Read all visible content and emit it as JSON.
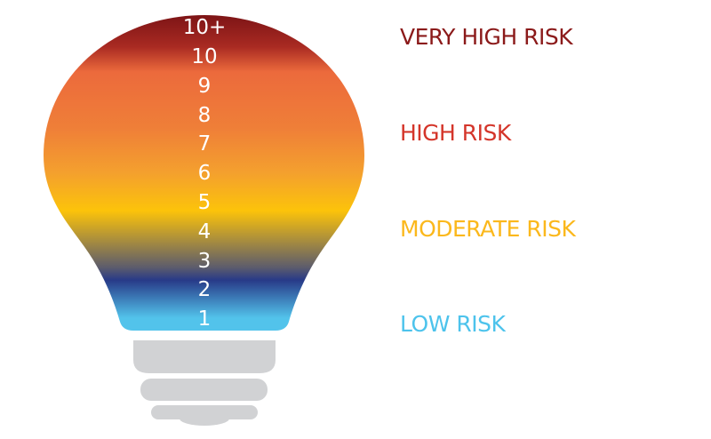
{
  "scale": [
    "10+",
    "10",
    "9",
    "8",
    "7",
    "6",
    "5",
    "4",
    "3",
    "2",
    "1"
  ],
  "risk_levels": [
    {
      "label": "VERY HIGH RISK",
      "color": "#8b1a1a"
    },
    {
      "label": "HIGH RISK",
      "color": "#d4352a"
    },
    {
      "label": "MODERATE RISK",
      "color": "#fbb81c"
    },
    {
      "label": "LOW RISK",
      "color": "#4dc3ec"
    }
  ],
  "bulb_gradient": [
    "#7d1416",
    "#ec6a3c",
    "#f2953a",
    "#fcc30a",
    "#283a88",
    "#52c3eb"
  ],
  "base_color": "#d1d2d4"
}
